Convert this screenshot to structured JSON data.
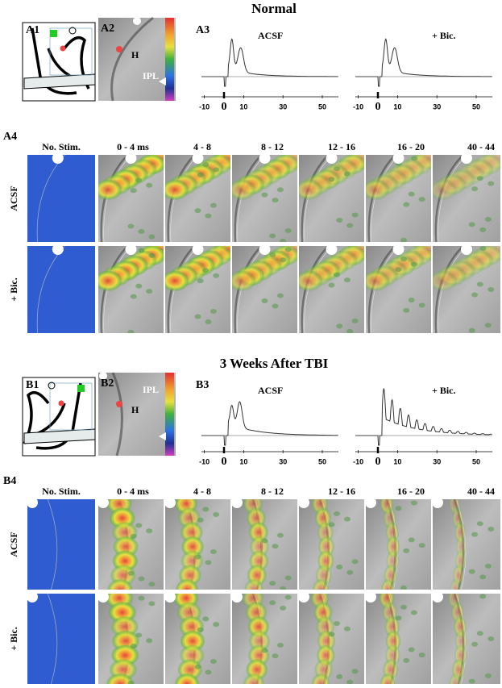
{
  "sections": [
    {
      "title": "Normal",
      "panels": [
        "A1",
        "A2",
        "A3",
        "A4"
      ],
      "image_labels": [
        "H",
        "IPL"
      ],
      "traces": [
        "ACSF",
        "+ Bic."
      ],
      "time_ticks": [
        "-10",
        "0",
        "10",
        "30",
        "50"
      ],
      "columns": [
        "No. Stim.",
        "0 - 4 ms",
        "4 - 8",
        "8 - 12",
        "12 - 16",
        "16 - 20",
        "40 - 44"
      ],
      "rows": [
        "ACSF",
        "+ Bic."
      ]
    },
    {
      "title": "3 Weeks After TBI",
      "panels": [
        "B1",
        "B2",
        "B3",
        "B4"
      ],
      "image_labels": [
        "H",
        "IPL"
      ],
      "traces": [
        "ACSF",
        "+ Bic."
      ],
      "time_ticks": [
        "-10",
        "0",
        "10",
        "30",
        "50"
      ],
      "columns": [
        "No. Stim.",
        "0 - 4 ms",
        "4 - 8",
        "8 - 12",
        "12 - 16",
        "16 - 20",
        "40 - 44"
      ],
      "rows": [
        "ACSF",
        "+ Bic."
      ]
    }
  ]
}
